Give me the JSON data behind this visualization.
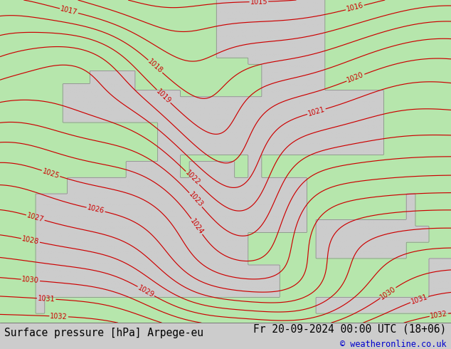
{
  "title_left": "Surface pressure [hPa] Arpege-eu",
  "title_right": "Fr 20-09-2024 00:00 UTC (18+06)",
  "copyright": "© weatheronline.co.uk",
  "bg_color": "#cccccc",
  "land_color_rgba": [
    0.714,
    0.902,
    0.678,
    1.0
  ],
  "sea_color_rgba": [
    0.8,
    0.8,
    0.8,
    1.0
  ],
  "contour_color": "#cc0000",
  "coast_color": "#888888",
  "text_color_left": "#000000",
  "text_color_right": "#000000",
  "copyright_color": "#0000cc",
  "bottom_bar_color": "#ffffff",
  "title_fontsize": 10.5,
  "copyright_fontsize": 8.5,
  "contour_fontsize": 7.0,
  "pressure_min": 1015,
  "pressure_max": 1032,
  "pressure_step": 1
}
